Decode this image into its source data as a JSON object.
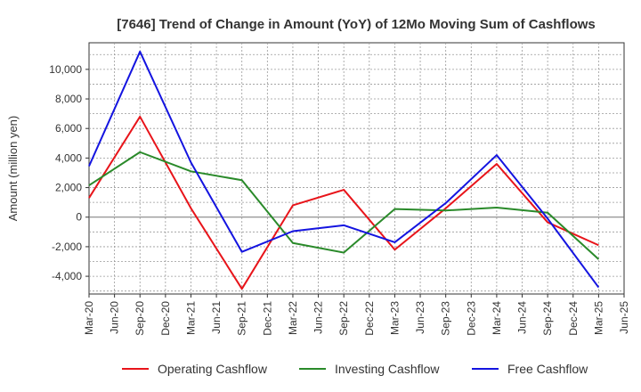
{
  "chart_data": {
    "type": "line",
    "title": "[7646]  Trend of Change in Amount (YoY) of 12Mo Moving Sum of Cashflows",
    "xlabel": "",
    "ylabel": "Amount (million yen)",
    "ylim": [
      -5200,
      11800
    ],
    "yticks": [
      -4000,
      -2000,
      0,
      2000,
      4000,
      6000,
      8000,
      10000
    ],
    "ytick_labels": [
      "-4,000",
      "-2,000",
      "0",
      "2,000",
      "4,000",
      "6,000",
      "8,000",
      "10,000"
    ],
    "categories": [
      "Mar-20",
      "Jun-20",
      "Sep-20",
      "Dec-20",
      "Mar-21",
      "Jun-21",
      "Sep-21",
      "Dec-21",
      "Mar-22",
      "Jun-22",
      "Sep-22",
      "Dec-22",
      "Mar-23",
      "Jun-23",
      "Sep-23",
      "Dec-23",
      "Mar-24",
      "Jun-24",
      "Sep-24",
      "Dec-24",
      "Mar-25",
      "Jun-25"
    ],
    "grid": true,
    "legend_position": "bottom",
    "series": [
      {
        "name": "Operating Cashflow",
        "color": "#e8141a",
        "points": [
          {
            "x": "Mar-20",
            "y": 1300
          },
          {
            "x": "Sep-20",
            "y": 6800
          },
          {
            "x": "Mar-21",
            "y": 600
          },
          {
            "x": "Sep-21",
            "y": -4850
          },
          {
            "x": "Mar-22",
            "y": 800
          },
          {
            "x": "Sep-22",
            "y": 1850
          },
          {
            "x": "Mar-23",
            "y": -2200
          },
          {
            "x": "Sep-23",
            "y": 600
          },
          {
            "x": "Mar-24",
            "y": 3600
          },
          {
            "x": "Sep-24",
            "y": -350
          },
          {
            "x": "Mar-25",
            "y": -1900
          }
        ]
      },
      {
        "name": "Investing Cashflow",
        "color": "#2a8a2a",
        "points": [
          {
            "x": "Mar-20",
            "y": 2150
          },
          {
            "x": "Sep-20",
            "y": 4400
          },
          {
            "x": "Mar-21",
            "y": 3100
          },
          {
            "x": "Sep-21",
            "y": 2500
          },
          {
            "x": "Mar-22",
            "y": -1750
          },
          {
            "x": "Sep-22",
            "y": -2400
          },
          {
            "x": "Mar-23",
            "y": 550
          },
          {
            "x": "Sep-23",
            "y": 450
          },
          {
            "x": "Mar-24",
            "y": 650
          },
          {
            "x": "Sep-24",
            "y": 300
          },
          {
            "x": "Mar-25",
            "y": -2850
          }
        ]
      },
      {
        "name": "Free Cashflow",
        "color": "#1414e0",
        "points": [
          {
            "x": "Mar-20",
            "y": 3450
          },
          {
            "x": "Sep-20",
            "y": 11200
          },
          {
            "x": "Mar-21",
            "y": 3700
          },
          {
            "x": "Sep-21",
            "y": -2350
          },
          {
            "x": "Mar-22",
            "y": -950
          },
          {
            "x": "Sep-22",
            "y": -550
          },
          {
            "x": "Mar-23",
            "y": -1700
          },
          {
            "x": "Sep-23",
            "y": 950
          },
          {
            "x": "Mar-24",
            "y": 4200
          },
          {
            "x": "Sep-24",
            "y": -100
          },
          {
            "x": "Mar-25",
            "y": -4750
          }
        ]
      }
    ]
  }
}
